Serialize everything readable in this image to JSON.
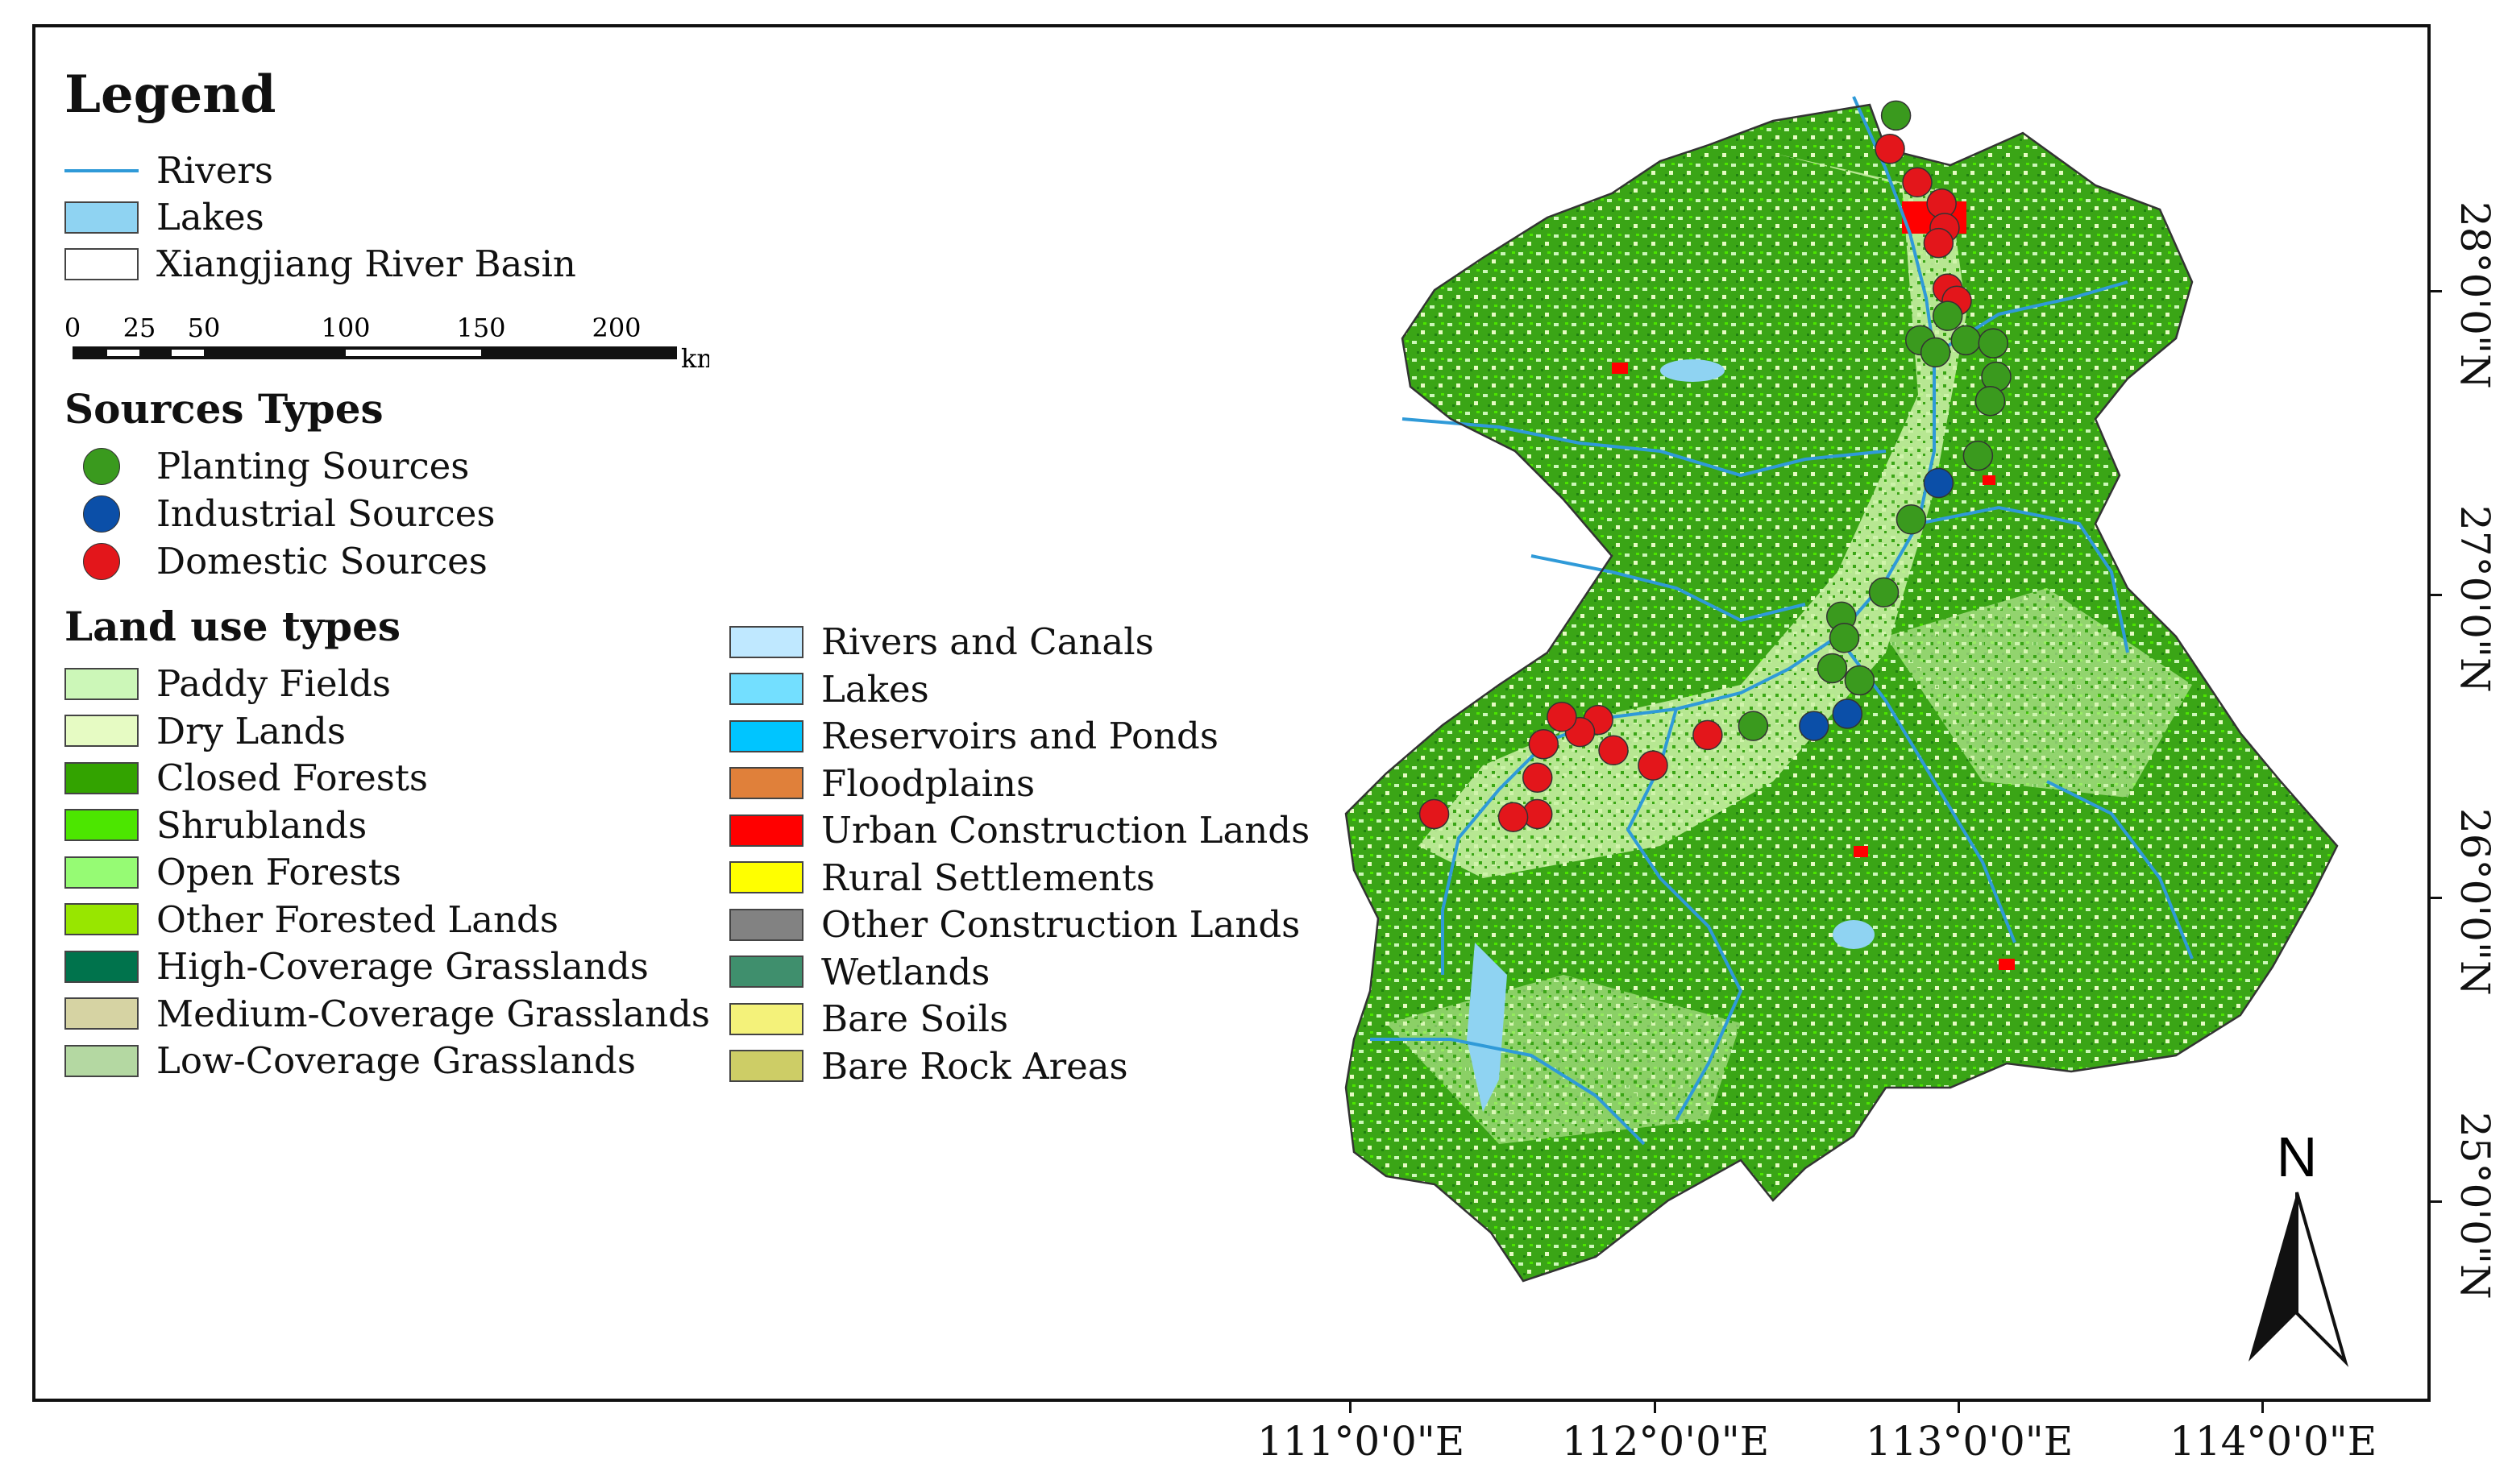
{
  "legend": {
    "title": "Legend",
    "base_items": [
      {
        "label": "Rivers",
        "kind": "line",
        "color": "#2f9ad8"
      },
      {
        "label": "Lakes",
        "kind": "box",
        "color": "#8fd3f2"
      },
      {
        "label": "Xiangjiang River Basin",
        "kind": "box",
        "color": "#ffffff"
      }
    ],
    "scalebar": {
      "ticks": [
        "0",
        "25",
        "50",
        "100",
        "150",
        "200"
      ],
      "unit": "km"
    },
    "sources_title": "Sources Types",
    "sources": [
      {
        "label": "Planting Sources",
        "color": "#3a9a1e"
      },
      {
        "label": "Industrial Sources",
        "color": "#0b4fa8"
      },
      {
        "label": "Domestic Sources",
        "color": "#e3161b"
      }
    ],
    "landuse_title": "Land use types",
    "landuse_col1": [
      {
        "label": "Paddy Fields",
        "color": "#ccf7b8"
      },
      {
        "label": "Dry Lands",
        "color": "#e6fbc3"
      },
      {
        "label": "Closed Forests",
        "color": "#33a300"
      },
      {
        "label": "Shrublands",
        "color": "#4ce600"
      },
      {
        "label": "Open Forests",
        "color": "#96fb74"
      },
      {
        "label": "Other Forested Lands",
        "color": "#98e600"
      },
      {
        "label": "High-Coverage Grasslands",
        "color": "#00734c"
      },
      {
        "label": "Medium-Coverage Grasslands",
        "color": "#d6d3a3"
      },
      {
        "label": "Low-Coverage Grasslands",
        "color": "#b4d8a2"
      }
    ],
    "landuse_col2": [
      {
        "label": "Rivers and Canals",
        "color": "#bfe8ff"
      },
      {
        "label": "Lakes",
        "color": "#73dfff"
      },
      {
        "label": "Reservoirs and Ponds",
        "color": "#00c5ff"
      },
      {
        "label": "Floodplains",
        "color": "#e0803a"
      },
      {
        "label": "Urban Construction Lands",
        "color": "#ff0000"
      },
      {
        "label": "Rural Settlements",
        "color": "#ffff00"
      },
      {
        "label": "Other Construction Lands",
        "color": "#828282"
      },
      {
        "label": "Wetlands",
        "color": "#3f8f6d"
      },
      {
        "label": "Bare Soils",
        "color": "#f4f27a"
      },
      {
        "label": "Bare Rock Areas",
        "color": "#cdcd66"
      }
    ]
  },
  "axes": {
    "lon_labels": [
      "111°0'0\"E",
      "112°0'0\"E",
      "113°0'0\"E",
      "114°0'0\"E"
    ],
    "lat_labels": [
      "28°0'0\"N",
      "27°0'0\"N",
      "26°0'0\"N",
      "25°0'0\"N"
    ]
  },
  "north_label": "N",
  "sources_points": [
    {
      "type": "Planting",
      "lon": 112.8,
      "lat": 28.58
    },
    {
      "type": "Domestic",
      "lon": 112.78,
      "lat": 28.47
    },
    {
      "type": "Domestic",
      "lon": 112.87,
      "lat": 28.36
    },
    {
      "type": "Domestic",
      "lon": 112.95,
      "lat": 28.29
    },
    {
      "type": "Domestic",
      "lon": 112.96,
      "lat": 28.21
    },
    {
      "type": "Domestic",
      "lon": 112.94,
      "lat": 28.16
    },
    {
      "type": "Domestic",
      "lon": 112.97,
      "lat": 28.01
    },
    {
      "type": "Domestic",
      "lon": 113.0,
      "lat": 27.97
    },
    {
      "type": "Planting",
      "lon": 112.97,
      "lat": 27.92
    },
    {
      "type": "Planting",
      "lon": 112.88,
      "lat": 27.84
    },
    {
      "type": "Planting",
      "lon": 112.93,
      "lat": 27.8
    },
    {
      "type": "Planting",
      "lon": 113.03,
      "lat": 27.84
    },
    {
      "type": "Planting",
      "lon": 113.12,
      "lat": 27.83
    },
    {
      "type": "Planting",
      "lon": 113.13,
      "lat": 27.72
    },
    {
      "type": "Planting",
      "lon": 113.11,
      "lat": 27.64
    },
    {
      "type": "Planting",
      "lon": 113.07,
      "lat": 27.46
    },
    {
      "type": "Industrial",
      "lon": 112.94,
      "lat": 27.37
    },
    {
      "type": "Planting",
      "lon": 112.85,
      "lat": 27.25
    },
    {
      "type": "Planting",
      "lon": 112.76,
      "lat": 27.01
    },
    {
      "type": "Planting",
      "lon": 112.62,
      "lat": 26.93
    },
    {
      "type": "Planting",
      "lon": 112.63,
      "lat": 26.86
    },
    {
      "type": "Planting",
      "lon": 112.59,
      "lat": 26.76
    },
    {
      "type": "Planting",
      "lon": 112.68,
      "lat": 26.72
    },
    {
      "type": "Industrial",
      "lon": 112.64,
      "lat": 26.61
    },
    {
      "type": "Industrial",
      "lon": 112.53,
      "lat": 26.57
    },
    {
      "type": "Planting",
      "lon": 112.33,
      "lat": 26.57
    },
    {
      "type": "Domestic",
      "lon": 112.18,
      "lat": 26.54
    },
    {
      "type": "Domestic",
      "lon": 112.0,
      "lat": 26.44
    },
    {
      "type": "Domestic",
      "lon": 111.87,
      "lat": 26.49
    },
    {
      "type": "Domestic",
      "lon": 111.82,
      "lat": 26.59
    },
    {
      "type": "Domestic",
      "lon": 111.76,
      "lat": 26.55
    },
    {
      "type": "Domestic",
      "lon": 111.7,
      "lat": 26.6
    },
    {
      "type": "Domestic",
      "lon": 111.64,
      "lat": 26.51
    },
    {
      "type": "Domestic",
      "lon": 111.62,
      "lat": 26.4
    },
    {
      "type": "Domestic",
      "lon": 111.62,
      "lat": 26.28
    },
    {
      "type": "Domestic",
      "lon": 111.54,
      "lat": 26.27
    },
    {
      "type": "Domestic",
      "lon": 111.28,
      "lat": 26.28
    }
  ]
}
